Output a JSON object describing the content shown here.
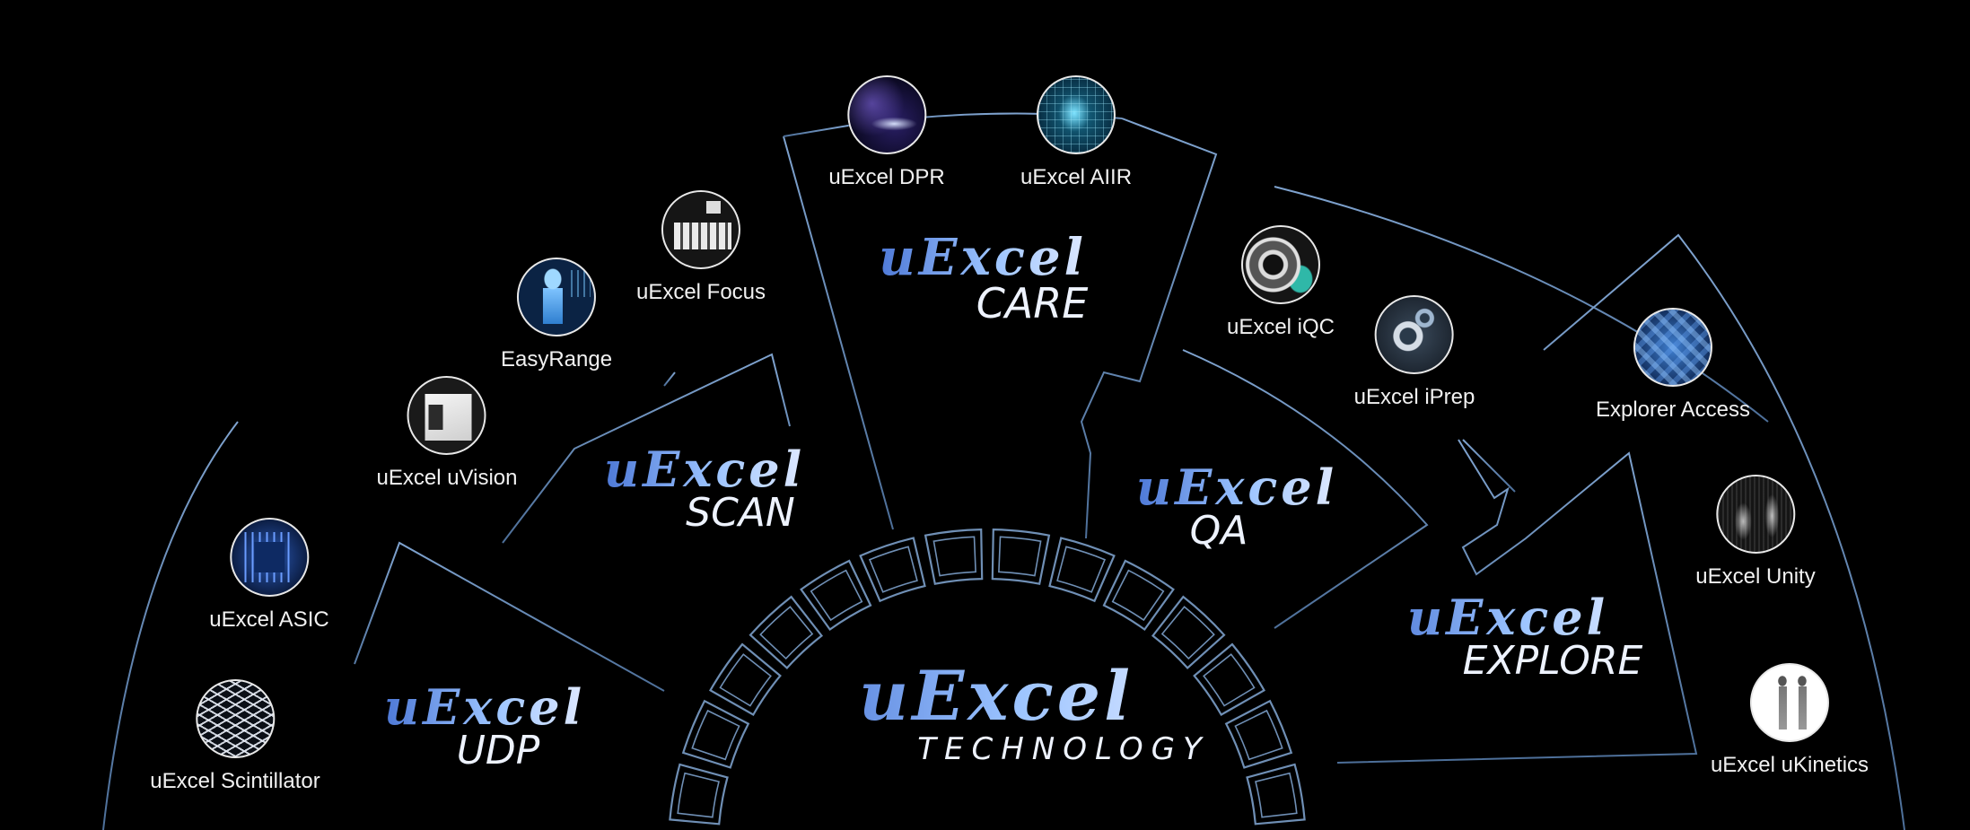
{
  "colors": {
    "background": "#000000",
    "line": "#6f8fb5",
    "accent": "#8fb8ff"
  },
  "center": {
    "brand": "uExcel",
    "name": "TECHNOLOGY"
  },
  "segments": [
    {
      "brand": "uExcel",
      "name": "UDP"
    },
    {
      "brand": "uExcel",
      "name": "SCAN"
    },
    {
      "brand": "uExcel",
      "name": "CARE"
    },
    {
      "brand": "uExcel",
      "name": "QA"
    },
    {
      "brand": "uExcel",
      "name": "EXPLORE"
    }
  ],
  "nodes": [
    {
      "label": "uExcel Scintillator",
      "icon": "scintillator-grid-icon"
    },
    {
      "label": "uExcel ASIC",
      "icon": "chip-icon"
    },
    {
      "label": "uExcel uVision",
      "icon": "camera-device-icon"
    },
    {
      "label": "EasyRange",
      "icon": "body-scan-icon"
    },
    {
      "label": "uExcel Focus",
      "icon": "detector-array-icon"
    },
    {
      "label": "uExcel DPR",
      "icon": "particle-wave-icon"
    },
    {
      "label": "uExcel AIIR",
      "icon": "ai-brain-icon"
    },
    {
      "label": "uExcel iQC",
      "icon": "shield-gantry-icon"
    },
    {
      "label": "uExcel iPrep",
      "icon": "gear-tool-icon"
    },
    {
      "label": "Explorer Access",
      "icon": "cubes-icon"
    },
    {
      "label": "uExcel Unity",
      "icon": "waveform-icon"
    },
    {
      "label": "uExcel uKinetics",
      "icon": "whole-body-scan-icon"
    }
  ]
}
